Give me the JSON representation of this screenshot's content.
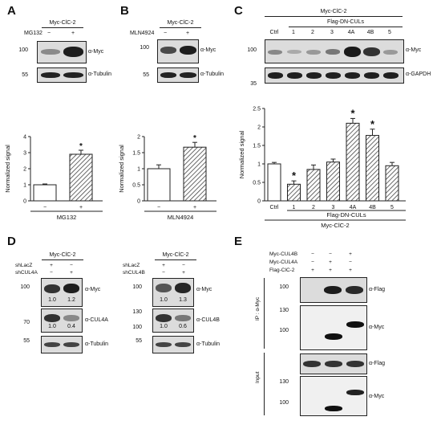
{
  "panel_labels": {
    "a": "A",
    "b": "B",
    "c": "C",
    "d": "D",
    "e": "E"
  },
  "A": {
    "header": "Myc-ClC-2",
    "treat_label": "MG132",
    "minus": "−",
    "plus": "+",
    "mw_top": "100",
    "mw_bot": "55",
    "blot_top": "α-Myc",
    "blot_bot": "α-Tubulin"
  },
  "B": {
    "header": "Myc-ClC-2",
    "treat_label": "MLN4924",
    "minus": "−",
    "plus": "+",
    "mw_top": "100",
    "mw_bot": "55",
    "blot_top": "α-Myc",
    "blot_bot": "α-Tubulin"
  },
  "C": {
    "header": "Myc-ClC-2",
    "subheader": "Flag-DN-CULs",
    "lanes": [
      "Ctrl",
      "1",
      "2",
      "3",
      "4A",
      "4B",
      "5"
    ],
    "mw_top": "100",
    "mw_bot": "35",
    "blot_top": "α-Myc",
    "blot_bot": "α-GAPDH"
  },
  "D": {
    "left": {
      "header": "Myc-ClC-2",
      "row1": "shLacZ",
      "row2": "shCUL4A",
      "r1": [
        "+",
        "−"
      ],
      "r2": [
        "−",
        "+"
      ],
      "mw": [
        "100",
        "70",
        "55"
      ],
      "blots": [
        "α-Myc",
        "α-CUL4A",
        "α-Tubulin"
      ],
      "q_myc": [
        "1.0",
        "1.2"
      ],
      "q_cul": [
        "1.0",
        "0.4"
      ]
    },
    "right": {
      "header": "Myc-ClC-2",
      "row1": "shLacZ",
      "row2": "shCUL4B",
      "r1": [
        "+",
        "−"
      ],
      "r2": [
        "−",
        "+"
      ],
      "mw": [
        "100",
        "130",
        "100",
        "55"
      ],
      "blots": [
        "α-Myc",
        "α-CUL4B",
        "α-Tubulin"
      ],
      "q_myc": [
        "1.0",
        "1.3"
      ],
      "q_cul": [
        "1.0",
        "0.6"
      ]
    }
  },
  "E": {
    "rows": [
      "Myc-CUL4B",
      "Myc-CUL4A",
      "Flag-ClC-2"
    ],
    "r1": [
      "−",
      "−",
      "+"
    ],
    "r2": [
      "−",
      "+",
      "−"
    ],
    "r3": [
      "+",
      "+",
      "+"
    ],
    "ip_label": "IP : α-Myc",
    "input_label": "Input",
    "mw_ip": [
      "100",
      "130",
      "100"
    ],
    "mw_in": [
      "130",
      "100"
    ],
    "blots": [
      "α-Flag",
      "α-Myc",
      "α-Flag",
      "α-Myc"
    ]
  },
  "chart_data": [
    {
      "type": "bar",
      "panel": "A",
      "categories": [
        "−",
        "+"
      ],
      "values": [
        1.0,
        2.9
      ],
      "errors": [
        0.05,
        0.25
      ],
      "significance": [
        "",
        "*"
      ],
      "title": "",
      "xlabel": "MG132",
      "ylabel": "Normalized signal",
      "ylim": [
        0,
        4
      ],
      "yticks": [
        0,
        1,
        2,
        3,
        4
      ],
      "colors": [
        "#ffffff",
        "hatched"
      ]
    },
    {
      "type": "bar",
      "panel": "B",
      "categories": [
        "−",
        "+"
      ],
      "values": [
        1.0,
        1.67
      ],
      "errors": [
        0.12,
        0.15
      ],
      "significance": [
        "",
        "*"
      ],
      "title": "",
      "xlabel": "MLN4924",
      "ylabel": "Normalized signal",
      "ylim": [
        0,
        2.0
      ],
      "yticks": [
        0,
        0.5,
        1.0,
        1.5,
        2.0
      ],
      "colors": [
        "#ffffff",
        "hatched"
      ]
    },
    {
      "type": "bar",
      "panel": "C",
      "categories": [
        "Ctrl",
        "1",
        "2",
        "3",
        "4A",
        "4B",
        "5"
      ],
      "values": [
        1.0,
        0.45,
        0.85,
        1.05,
        2.1,
        1.77,
        0.95
      ],
      "errors": [
        0.04,
        0.09,
        0.12,
        0.08,
        0.13,
        0.17,
        0.09
      ],
      "significance": [
        "",
        "*",
        "",
        "",
        "*",
        "*",
        ""
      ],
      "title": "",
      "xlabel": "Flag-DN-CULs",
      "xlabel2": "Myc-ClC-2",
      "ylabel": "Normalized signal",
      "ylim": [
        0,
        2.5
      ],
      "yticks": [
        0,
        0.5,
        1.0,
        1.5,
        2.0,
        2.5
      ]
    }
  ]
}
